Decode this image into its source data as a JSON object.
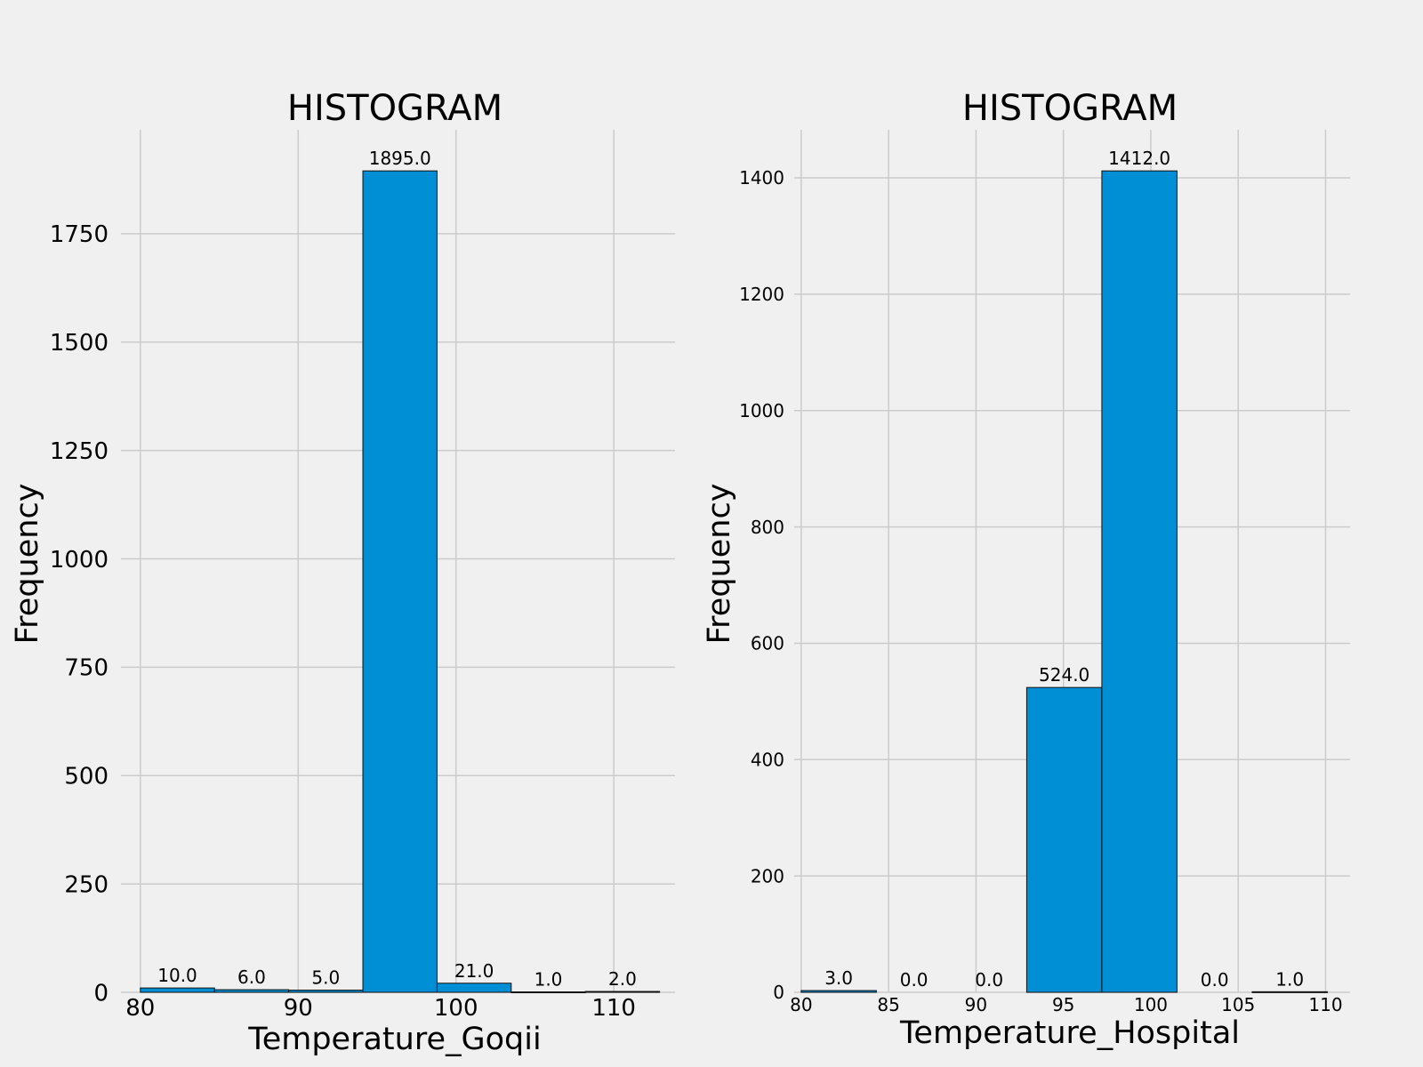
{
  "chart_data": [
    {
      "type": "bar",
      "title": "HISTOGRAM",
      "xlabel": "Temperature_Goqii",
      "ylabel": "Frequency",
      "xlim": [
        78.77,
        113.88
      ],
      "ylim": [
        0,
        1989.75
      ],
      "xticks": [
        "80",
        "90",
        "100",
        "110"
      ],
      "yticks": [
        "0",
        "250",
        "500",
        "750",
        "1000",
        "1250",
        "1500",
        "1750"
      ],
      "bins": [
        {
          "start": 80.0,
          "end": 84.7,
          "value": 10,
          "label": "10.0"
        },
        {
          "start": 84.7,
          "end": 89.4,
          "value": 6,
          "label": "6.0"
        },
        {
          "start": 89.4,
          "end": 94.1,
          "value": 5,
          "label": "5.0"
        },
        {
          "start": 94.1,
          "end": 98.8,
          "value": 1895,
          "label": "1895.0"
        },
        {
          "start": 98.8,
          "end": 103.5,
          "value": 21,
          "label": "21.0"
        },
        {
          "start": 103.5,
          "end": 108.2,
          "value": 1,
          "label": "1.0"
        },
        {
          "start": 108.2,
          "end": 112.9,
          "value": 2,
          "label": "2.0"
        }
      ],
      "bar_color": "#008fd5",
      "grid": true
    },
    {
      "type": "bar",
      "title": "HISTOGRAM",
      "xlabel": "Temperature_Hospital",
      "ylabel": "Frequency",
      "xlim": [
        79.6,
        111.4
      ],
      "ylim": [
        0,
        1482.6
      ],
      "xticks": [
        "80",
        "85",
        "90",
        "95",
        "100",
        "105",
        "110"
      ],
      "yticks": [
        "0",
        "200",
        "400",
        "600",
        "800",
        "1000",
        "1200",
        "1400"
      ],
      "bins": [
        {
          "start": 80.0,
          "end": 84.3,
          "value": 3,
          "label": "3.0"
        },
        {
          "start": 84.3,
          "end": 88.6,
          "value": 0,
          "label": "0.0"
        },
        {
          "start": 88.6,
          "end": 92.9,
          "value": 0,
          "label": "0.0"
        },
        {
          "start": 92.9,
          "end": 97.2,
          "value": 524,
          "label": "524.0"
        },
        {
          "start": 97.2,
          "end": 101.5,
          "value": 1412,
          "label": "1412.0"
        },
        {
          "start": 101.5,
          "end": 105.8,
          "value": 0,
          "label": "0.0"
        },
        {
          "start": 105.8,
          "end": 110.1,
          "value": 1,
          "label": "1.0"
        }
      ],
      "bar_color": "#008fd5",
      "grid": true
    }
  ]
}
